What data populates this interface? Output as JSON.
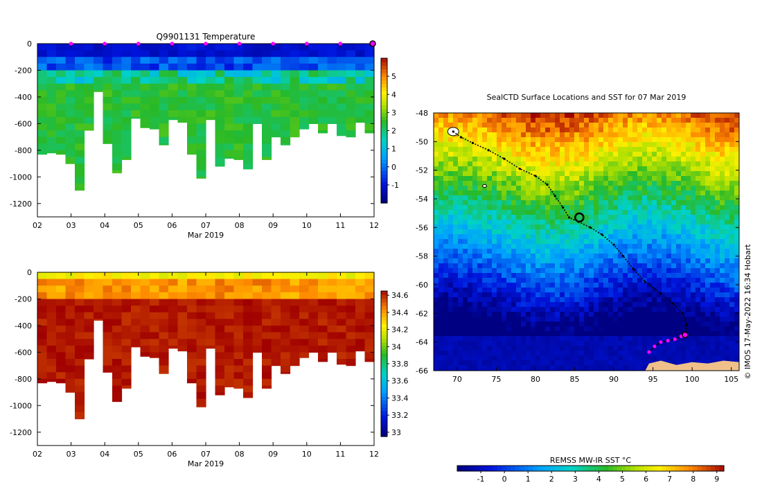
{
  "chart_data": [
    {
      "type": "heatmap",
      "title": "Q9901131  Temperature",
      "xlabel": "Mar 2019",
      "x_ticks": [
        "02",
        "03",
        "04",
        "05",
        "06",
        "07",
        "08",
        "09",
        "10",
        "11",
        "12"
      ],
      "xlim": [
        2,
        12
      ],
      "ylim": [
        -1300,
        0
      ],
      "y_ticks": [
        0,
        -200,
        -400,
        -600,
        -800,
        -1000,
        -1200
      ],
      "colorbar": {
        "min": -2,
        "max": 6,
        "ticks": [
          -1,
          0,
          1,
          2,
          3,
          4,
          5
        ]
      },
      "surface_markers_day": [
        3,
        4,
        5,
        6,
        7,
        8,
        9,
        10,
        11
      ],
      "latest_marker_day": 12,
      "profile_max_depth_m": [
        830,
        820,
        830,
        900,
        1100,
        650,
        360,
        750,
        970,
        870,
        560,
        630,
        640,
        760,
        570,
        590,
        830,
        1010,
        570,
        920,
        860,
        870,
        940,
        600,
        870,
        700,
        760,
        700,
        640,
        600,
        670,
        600,
        690,
        700,
        590,
        670
      ]
    },
    {
      "type": "heatmap",
      "title": "",
      "xlabel": "Mar 2019",
      "x_ticks": [
        "02",
        "03",
        "04",
        "05",
        "06",
        "07",
        "08",
        "09",
        "10",
        "11",
        "12"
      ],
      "xlim": [
        2,
        12
      ],
      "ylim": [
        -1300,
        0
      ],
      "y_ticks": [
        0,
        -200,
        -400,
        -600,
        -800,
        -1000,
        -1200
      ],
      "colorbar": {
        "min": 32.95,
        "max": 34.65,
        "ticks": [
          "34.6",
          "34.4",
          "34.2",
          "34",
          "33.8",
          "33.6",
          "33.4",
          "33.2",
          "33"
        ]
      },
      "profile_max_depth_m": [
        830,
        820,
        830,
        900,
        1100,
        650,
        360,
        750,
        970,
        870,
        560,
        630,
        640,
        760,
        570,
        590,
        830,
        1010,
        570,
        920,
        860,
        870,
        940,
        600,
        870,
        700,
        760,
        700,
        640,
        600,
        670,
        600,
        690,
        700,
        590,
        670
      ]
    },
    {
      "type": "heatmap",
      "title": "SealCTD Surface Locations and SST for 07 Mar 2019",
      "xlim": [
        67,
        106
      ],
      "ylim": [
        -66,
        -48
      ],
      "x_ticks": [
        70,
        75,
        80,
        85,
        90,
        95,
        100,
        105
      ],
      "y_ticks": [
        -48,
        -50,
        -52,
        -54,
        -56,
        -58,
        -60,
        -62,
        -64,
        -66
      ],
      "colorbar_label": "REMSS MW-IR SST °C",
      "colorbar": {
        "min": -2,
        "max": 9.3,
        "ticks": [
          -1,
          0,
          1,
          2,
          3,
          4,
          5,
          6,
          7,
          8,
          9
        ]
      },
      "credit": "© IMOS 17-May-2022 16:34 Hobart",
      "track": [
        [
          69.5,
          -49.3
        ],
        [
          70.5,
          -49.7
        ],
        [
          72,
          -50.1
        ],
        [
          74,
          -50.6
        ],
        [
          76,
          -51.2
        ],
        [
          78,
          -51.9
        ],
        [
          80,
          -52.4
        ],
        [
          81.5,
          -53.0
        ],
        [
          82.5,
          -53.8
        ],
        [
          83.5,
          -54.6
        ],
        [
          84.3,
          -55.3
        ],
        [
          85.5,
          -55.6
        ],
        [
          87,
          -56.0
        ],
        [
          88.5,
          -56.5
        ],
        [
          90,
          -57.2
        ],
        [
          91.2,
          -58.0
        ],
        [
          92.5,
          -58.9
        ],
        [
          94,
          -59.8
        ],
        [
          96,
          -60.6
        ],
        [
          97.5,
          -61.3
        ],
        [
          98.8,
          -62.0
        ],
        [
          99.3,
          -62.8
        ],
        [
          99.2,
          -63.4
        ]
      ],
      "recent_positions": [
        [
          99.1,
          -63.5
        ],
        [
          98.6,
          -63.6
        ],
        [
          97.8,
          -63.8
        ],
        [
          96.9,
          -63.9
        ],
        [
          96.0,
          -64.0
        ],
        [
          95.2,
          -64.3
        ],
        [
          94.5,
          -64.7
        ]
      ],
      "current_position": [
        99.1,
        -63.5
      ],
      "circled_position": [
        85.6,
        -55.3
      ]
    }
  ]
}
